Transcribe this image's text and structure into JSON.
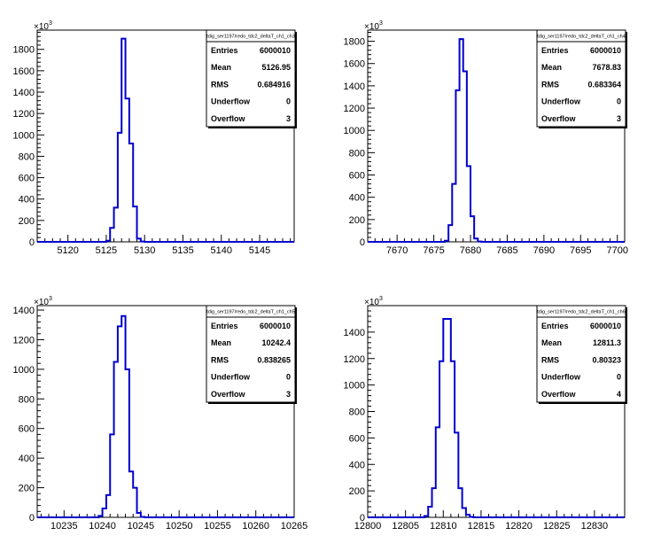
{
  "chart_data": [
    {
      "type": "histogram",
      "exponent_label": "10",
      "exponent_power": "3",
      "stats": {
        "title": "tdig_ser1197/redo_tdc2_deltaT_ch1_ch3",
        "rows": [
          {
            "label": "Entries",
            "value": "6000010"
          },
          {
            "label": "Mean",
            "value": "5126.95"
          },
          {
            "label": "RMS",
            "value": "0.684916"
          },
          {
            "label": "Underflow",
            "value": "0"
          },
          {
            "label": "Overflow",
            "value": "3"
          }
        ]
      },
      "xlim": [
        5116,
        5149.5
      ],
      "ylim": [
        0,
        1980
      ],
      "xticks": [
        5120,
        5125,
        5130,
        5135,
        5140,
        5145
      ],
      "yticks": [
        0,
        200,
        400,
        600,
        800,
        1000,
        1200,
        1400,
        1600,
        1800
      ],
      "ytick_labels": [
        "0",
        "200",
        "400",
        "600",
        "800",
        "1000",
        "1200",
        "1400",
        "1600",
        "1800"
      ],
      "bin_width": 0.5,
      "bins": [
        {
          "x": 5125.0,
          "y": 10
        },
        {
          "x": 5125.5,
          "y": 130
        },
        {
          "x": 5126.0,
          "y": 320
        },
        {
          "x": 5126.5,
          "y": 1020
        },
        {
          "x": 5127.0,
          "y": 1900
        },
        {
          "x": 5127.5,
          "y": 1340
        },
        {
          "x": 5128.0,
          "y": 920
        },
        {
          "x": 5128.5,
          "y": 330
        },
        {
          "x": 5129.0,
          "y": 30
        },
        {
          "x": 5129.5,
          "y": 3
        }
      ]
    },
    {
      "type": "histogram",
      "exponent_label": "10",
      "exponent_power": "3",
      "stats": {
        "title": "tdig_ser1197/redo_tdc2_deltaT_ch1_ch4",
        "rows": [
          {
            "label": "Entries",
            "value": "6000010"
          },
          {
            "label": "Mean",
            "value": "7678.83"
          },
          {
            "label": "RMS",
            "value": "0.683364"
          },
          {
            "label": "Underflow",
            "value": "0"
          },
          {
            "label": "Overflow",
            "value": "3"
          }
        ]
      },
      "xlim": [
        7666,
        7701
      ],
      "ylim": [
        0,
        1900
      ],
      "xticks": [
        7670,
        7675,
        7680,
        7685,
        7690,
        7695,
        7700
      ],
      "yticks": [
        0,
        200,
        400,
        600,
        800,
        1000,
        1200,
        1400,
        1600,
        1800
      ],
      "ytick_labels": [
        "0",
        "200",
        "400",
        "600",
        "800",
        "1000",
        "1200",
        "1400",
        "1600",
        "1800"
      ],
      "bin_width": 0.5,
      "bins": [
        {
          "x": 7676.5,
          "y": 10
        },
        {
          "x": 7677.0,
          "y": 150
        },
        {
          "x": 7677.5,
          "y": 520
        },
        {
          "x": 7678.0,
          "y": 1360
        },
        {
          "x": 7678.5,
          "y": 1820
        },
        {
          "x": 7679.0,
          "y": 1530
        },
        {
          "x": 7679.5,
          "y": 680
        },
        {
          "x": 7680.0,
          "y": 230
        },
        {
          "x": 7680.5,
          "y": 30
        },
        {
          "x": 7681.0,
          "y": 3
        }
      ]
    },
    {
      "type": "histogram",
      "exponent_label": "10",
      "exponent_power": "3",
      "stats": {
        "title": "tdig_ser1197/redo_tdc2_deltaT_ch1_ch5",
        "rows": [
          {
            "label": "Entries",
            "value": "6000010"
          },
          {
            "label": "Mean",
            "value": "10242.4"
          },
          {
            "label": "RMS",
            "value": "0.838265"
          },
          {
            "label": "Underflow",
            "value": "0"
          },
          {
            "label": "Overflow",
            "value": "3"
          }
        ]
      },
      "xlim": [
        10231.5,
        10265
      ],
      "ylim": [
        0,
        1430
      ],
      "xticks": [
        10235,
        10240,
        10245,
        10250,
        10255,
        10260,
        10265
      ],
      "yticks": [
        0,
        200,
        400,
        600,
        800,
        1000,
        1200,
        1400
      ],
      "ytick_labels": [
        "0",
        "200",
        "400",
        "600",
        "800",
        "1000",
        "1200",
        "1400"
      ],
      "bin_width": 0.5,
      "bins": [
        {
          "x": 10239.5,
          "y": 10
        },
        {
          "x": 10240.0,
          "y": 60
        },
        {
          "x": 10240.5,
          "y": 150
        },
        {
          "x": 10241.0,
          "y": 560
        },
        {
          "x": 10241.5,
          "y": 1050
        },
        {
          "x": 10242.0,
          "y": 1290
        },
        {
          "x": 10242.5,
          "y": 1360
        },
        {
          "x": 10243.0,
          "y": 1000
        },
        {
          "x": 10243.5,
          "y": 310
        },
        {
          "x": 10244.0,
          "y": 200
        },
        {
          "x": 10244.5,
          "y": 30
        },
        {
          "x": 10245.0,
          "y": 3
        }
      ]
    },
    {
      "type": "histogram",
      "exponent_label": "10",
      "exponent_power": "3",
      "stats": {
        "title": "tdig_ser1197/redo_tdc2_deltaT_ch1_ch6",
        "rows": [
          {
            "label": "Entries",
            "value": "6000010"
          },
          {
            "label": "Mean",
            "value": "12811.3"
          },
          {
            "label": "RMS",
            "value": "0.80323"
          },
          {
            "label": "Underflow",
            "value": "0"
          },
          {
            "label": "Overflow",
            "value": "4"
          }
        ]
      },
      "xlim": [
        12800,
        12834
      ],
      "ylim": [
        0,
        1600
      ],
      "xticks": [
        12800,
        12805,
        12810,
        12815,
        12820,
        12825,
        12830
      ],
      "yticks": [
        0,
        200,
        400,
        600,
        800,
        1000,
        1200,
        1400
      ],
      "ytick_labels": [
        "0",
        "200",
        "400",
        "600",
        "800",
        "1000",
        "1200",
        "1400"
      ],
      "bin_width": 0.5,
      "bins": [
        {
          "x": 12807.5,
          "y": 10
        },
        {
          "x": 12808.0,
          "y": 80
        },
        {
          "x": 12808.5,
          "y": 220
        },
        {
          "x": 12809.0,
          "y": 680
        },
        {
          "x": 12809.5,
          "y": 1180
        },
        {
          "x": 12810.0,
          "y": 1500
        },
        {
          "x": 12810.5,
          "y": 1500
        },
        {
          "x": 12811.0,
          "y": 1180
        },
        {
          "x": 12811.5,
          "y": 640
        },
        {
          "x": 12812.0,
          "y": 220
        },
        {
          "x": 12812.5,
          "y": 70
        },
        {
          "x": 12813.0,
          "y": 20
        },
        {
          "x": 12813.5,
          "y": 3
        }
      ]
    }
  ]
}
